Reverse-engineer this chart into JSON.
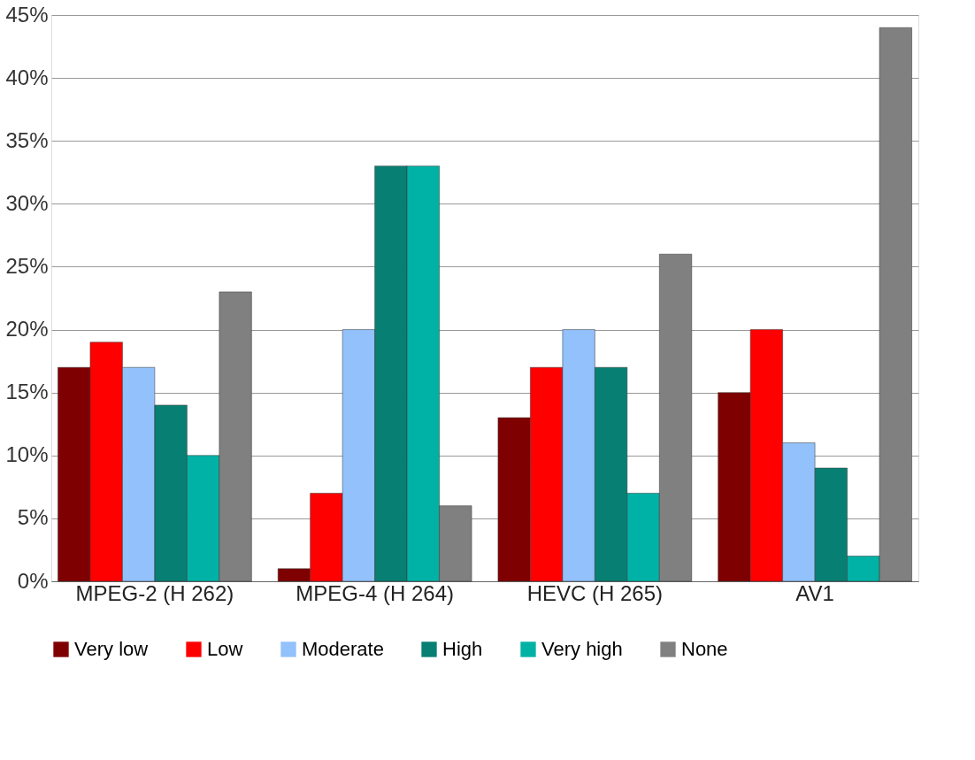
{
  "chart_data": {
    "type": "bar",
    "categories": [
      "MPEG-2 (H 262)",
      "MPEG-4 (H 264)",
      "HEVC (H 265)",
      "AV1"
    ],
    "series": [
      {
        "name": "Very low",
        "color": "#7f0000",
        "values": [
          17,
          1,
          13,
          15
        ]
      },
      {
        "name": "Low",
        "color": "#ff0000",
        "values": [
          19,
          7,
          17,
          20
        ]
      },
      {
        "name": "Moderate",
        "color": "#92c1fb",
        "values": [
          17,
          20,
          20,
          11
        ]
      },
      {
        "name": "High",
        "color": "#087f73",
        "values": [
          14,
          33,
          17,
          9
        ]
      },
      {
        "name": "Very high",
        "color": "#00b2a6",
        "values": [
          10,
          33,
          7,
          2
        ]
      },
      {
        "name": "None",
        "color": "#808080",
        "values": [
          23,
          6,
          26,
          44
        ]
      }
    ],
    "ylim": [
      0,
      45
    ],
    "yticks": [
      {
        "value": 0,
        "label": "0%"
      },
      {
        "value": 5,
        "label": "5%"
      },
      {
        "value": 10,
        "label": "10%"
      },
      {
        "value": 15,
        "label": "15%"
      },
      {
        "value": 20,
        "label": "20%"
      },
      {
        "value": 25,
        "label": "25%"
      },
      {
        "value": 30,
        "label": "30%"
      },
      {
        "value": 35,
        "label": "35%"
      },
      {
        "value": 40,
        "label": "40%"
      },
      {
        "value": 45,
        "label": "45%"
      }
    ],
    "grid": "y",
    "legend": "bottom"
  }
}
